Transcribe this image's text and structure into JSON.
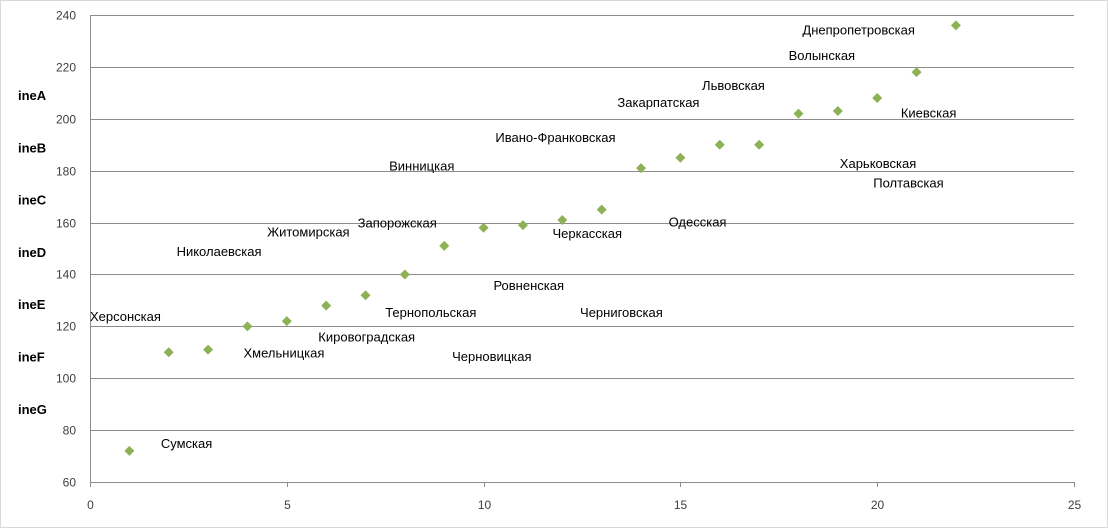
{
  "chart_data": {
    "type": "scatter",
    "title": "",
    "xlabel": "",
    "ylabel": "",
    "xlim": [
      0,
      25
    ],
    "ylim": [
      60,
      240
    ],
    "x_ticks": [
      0,
      5,
      10,
      15,
      20,
      25
    ],
    "y_ticks": [
      60,
      80,
      100,
      120,
      140,
      160,
      180,
      200,
      220,
      240
    ],
    "grid": "horizontal",
    "marker": "diamond",
    "marker_color": "#8db255",
    "side_labels": [
      "ineA",
      "ineB",
      "ineC",
      "ineD",
      "ineE",
      "ineF",
      "ineG"
    ],
    "points": [
      {
        "x": 1,
        "y": 72
      },
      {
        "x": 2,
        "y": 110
      },
      {
        "x": 3,
        "y": 111
      },
      {
        "x": 4,
        "y": 120
      },
      {
        "x": 5,
        "y": 122
      },
      {
        "x": 6,
        "y": 128
      },
      {
        "x": 7,
        "y": 132
      },
      {
        "x": 8,
        "y": 140
      },
      {
        "x": 9,
        "y": 151
      },
      {
        "x": 10,
        "y": 158
      },
      {
        "x": 11,
        "y": 159
      },
      {
        "x": 12,
        "y": 161
      },
      {
        "x": 13,
        "y": 165
      },
      {
        "x": 14,
        "y": 181
      },
      {
        "x": 15,
        "y": 185
      },
      {
        "x": 16,
        "y": 190
      },
      {
        "x": 17,
        "y": 190
      },
      {
        "x": 18,
        "y": 202
      },
      {
        "x": 19,
        "y": 203
      },
      {
        "x": 20,
        "y": 208
      },
      {
        "x": 21,
        "y": 218
      },
      {
        "x": 22,
        "y": 236
      }
    ],
    "labels": [
      {
        "text": "Сумская",
        "x": 1.8,
        "y": 75
      },
      {
        "text": "Херсонская",
        "x": 0,
        "y": 124
      },
      {
        "text": "Хмельницкая",
        "x": 3.9,
        "y": 110
      },
      {
        "text": "Николаевская",
        "x": 2.2,
        "y": 149
      },
      {
        "text": "Кировоградская",
        "x": 5.8,
        "y": 116
      },
      {
        "text": "Житомирская",
        "x": 4.5,
        "y": 156.5
      },
      {
        "text": "Тернопольская",
        "x": 7.5,
        "y": 125.5
      },
      {
        "text": "Запорожская",
        "x": 6.8,
        "y": 160
      },
      {
        "text": "Черновицкая",
        "x": 9.2,
        "y": 108.5
      },
      {
        "text": "Ровненская",
        "x": 10.25,
        "y": 136
      },
      {
        "text": "Винницкая",
        "x": 7.6,
        "y": 182
      },
      {
        "text": "Черкасская",
        "x": 11.75,
        "y": 156
      },
      {
        "text": "Ивано-Франковская",
        "x": 10.3,
        "y": 193
      },
      {
        "text": "Черниговская",
        "x": 12.45,
        "y": 125.5
      },
      {
        "text": "Одесская",
        "x": 14.7,
        "y": 160.5
      },
      {
        "text": "Закарпатская",
        "x": 13.4,
        "y": 206.5
      },
      {
        "text": "Львовская",
        "x": 15.55,
        "y": 213
      },
      {
        "text": "Харьковская",
        "x": 19.05,
        "y": 183
      },
      {
        "text": "Полтавская",
        "x": 19.9,
        "y": 175.5
      },
      {
        "text": "Киевская",
        "x": 20.6,
        "y": 202.5
      },
      {
        "text": "Волынская",
        "x": 17.75,
        "y": 224.5
      },
      {
        "text": "Днепропетровская",
        "x": 18.1,
        "y": 234.5
      }
    ]
  }
}
